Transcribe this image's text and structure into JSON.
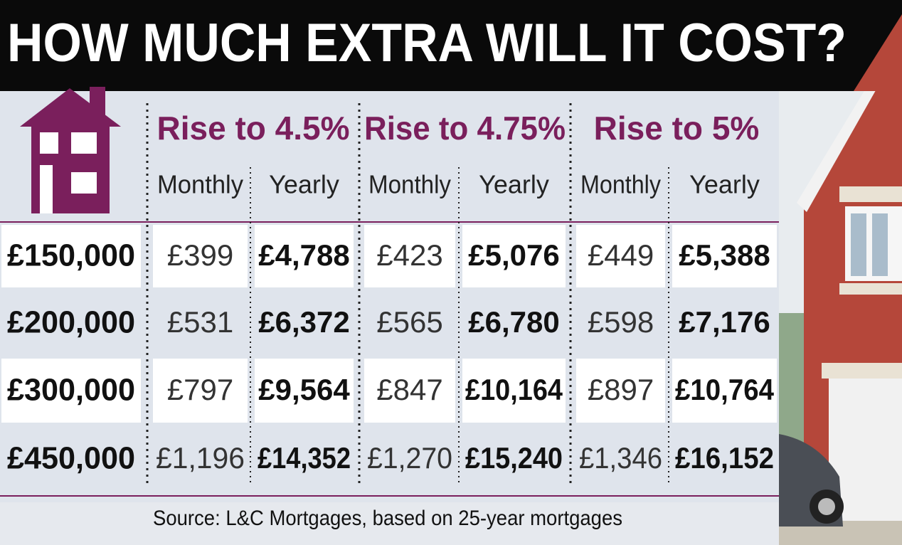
{
  "header": {
    "title": "HOW MUCH EXTRA WILL IT COST?"
  },
  "table": {
    "groups": [
      {
        "title": "Rise to 4.5%",
        "columns": [
          "Monthly",
          "Yearly"
        ]
      },
      {
        "title": "Rise to 4.75%",
        "columns": [
          "Monthly",
          "Yearly"
        ]
      },
      {
        "title": "Rise to 5%",
        "columns": [
          "Monthly",
          "Yearly"
        ]
      }
    ],
    "rows": [
      {
        "label": "£150,000",
        "cells": [
          "£399",
          "£4,788",
          "£423",
          "£5,076",
          "£449",
          "£5,388"
        ]
      },
      {
        "label": "£200,000",
        "cells": [
          "£531",
          "£6,372",
          "£565",
          "£6,780",
          "£598",
          "£7,176"
        ]
      },
      {
        "label": "£300,000",
        "cells": [
          "£797",
          "£9,564",
          "£847",
          "£10,164",
          "£897",
          "£10,764"
        ]
      },
      {
        "label": "£450,000",
        "cells": [
          "£1,196",
          "£14,352",
          "£1,270",
          "£15,240",
          "£1,346",
          "£16,152"
        ]
      }
    ]
  },
  "footer": {
    "source": "Source: L&C Mortgages, based on 25-year mortgages"
  }
}
